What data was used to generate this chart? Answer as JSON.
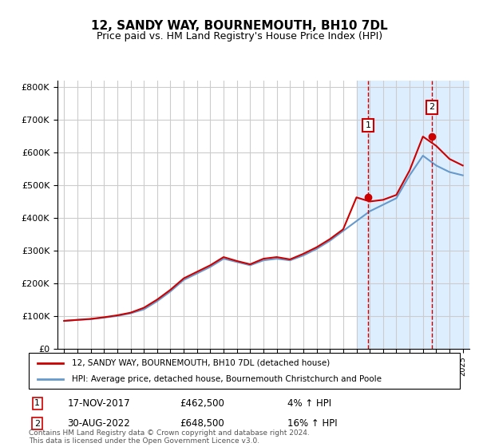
{
  "title": "12, SANDY WAY, BOURNEMOUTH, BH10 7DL",
  "subtitle": "Price paid vs. HM Land Registry's House Price Index (HPI)",
  "footer": "Contains HM Land Registry data © Crown copyright and database right 2024.\nThis data is licensed under the Open Government Licence v3.0.",
  "legend_line1": "12, SANDY WAY, BOURNEMOUTH, BH10 7DL (detached house)",
  "legend_line2": "HPI: Average price, detached house, Bournemouth Christchurch and Poole",
  "annotation1_label": "1",
  "annotation1_date": "17-NOV-2017",
  "annotation1_price": "£462,500",
  "annotation1_pct": "4% ↑ HPI",
  "annotation2_label": "2",
  "annotation2_date": "30-AUG-2022",
  "annotation2_price": "£648,500",
  "annotation2_pct": "16% ↑ HPI",
  "hpi_color": "#6699cc",
  "price_color": "#cc0000",
  "annotation_color": "#cc0000",
  "background_color": "#ffffff",
  "grid_color": "#cccccc",
  "highlight_color": "#ddeeff",
  "years": [
    1995,
    1996,
    1997,
    1998,
    1999,
    2000,
    2001,
    2002,
    2003,
    2004,
    2005,
    2006,
    2007,
    2008,
    2009,
    2010,
    2011,
    2012,
    2013,
    2014,
    2015,
    2016,
    2017,
    2018,
    2019,
    2020,
    2021,
    2022,
    2023,
    2024,
    2025
  ],
  "hpi_values": [
    85000,
    88000,
    90000,
    95000,
    100000,
    108000,
    120000,
    145000,
    175000,
    210000,
    230000,
    250000,
    275000,
    265000,
    255000,
    270000,
    275000,
    270000,
    285000,
    305000,
    330000,
    360000,
    390000,
    420000,
    440000,
    460000,
    530000,
    590000,
    560000,
    540000,
    530000
  ],
  "price_values": [
    85000,
    88000,
    91000,
    96000,
    102000,
    110000,
    125000,
    150000,
    180000,
    215000,
    235000,
    255000,
    280000,
    268000,
    258000,
    275000,
    280000,
    273000,
    290000,
    310000,
    335000,
    365000,
    462500,
    450000,
    455000,
    470000,
    545000,
    648500,
    620000,
    580000,
    560000
  ],
  "sale1_x": 2017.88,
  "sale1_y": 462500,
  "sale2_x": 2022.66,
  "sale2_y": 648500,
  "ylim": [
    0,
    820000
  ],
  "xlim_start": 1994.5,
  "xlim_end": 2025.5,
  "highlight_start": 2017.0,
  "highlight_end": 2025.5
}
